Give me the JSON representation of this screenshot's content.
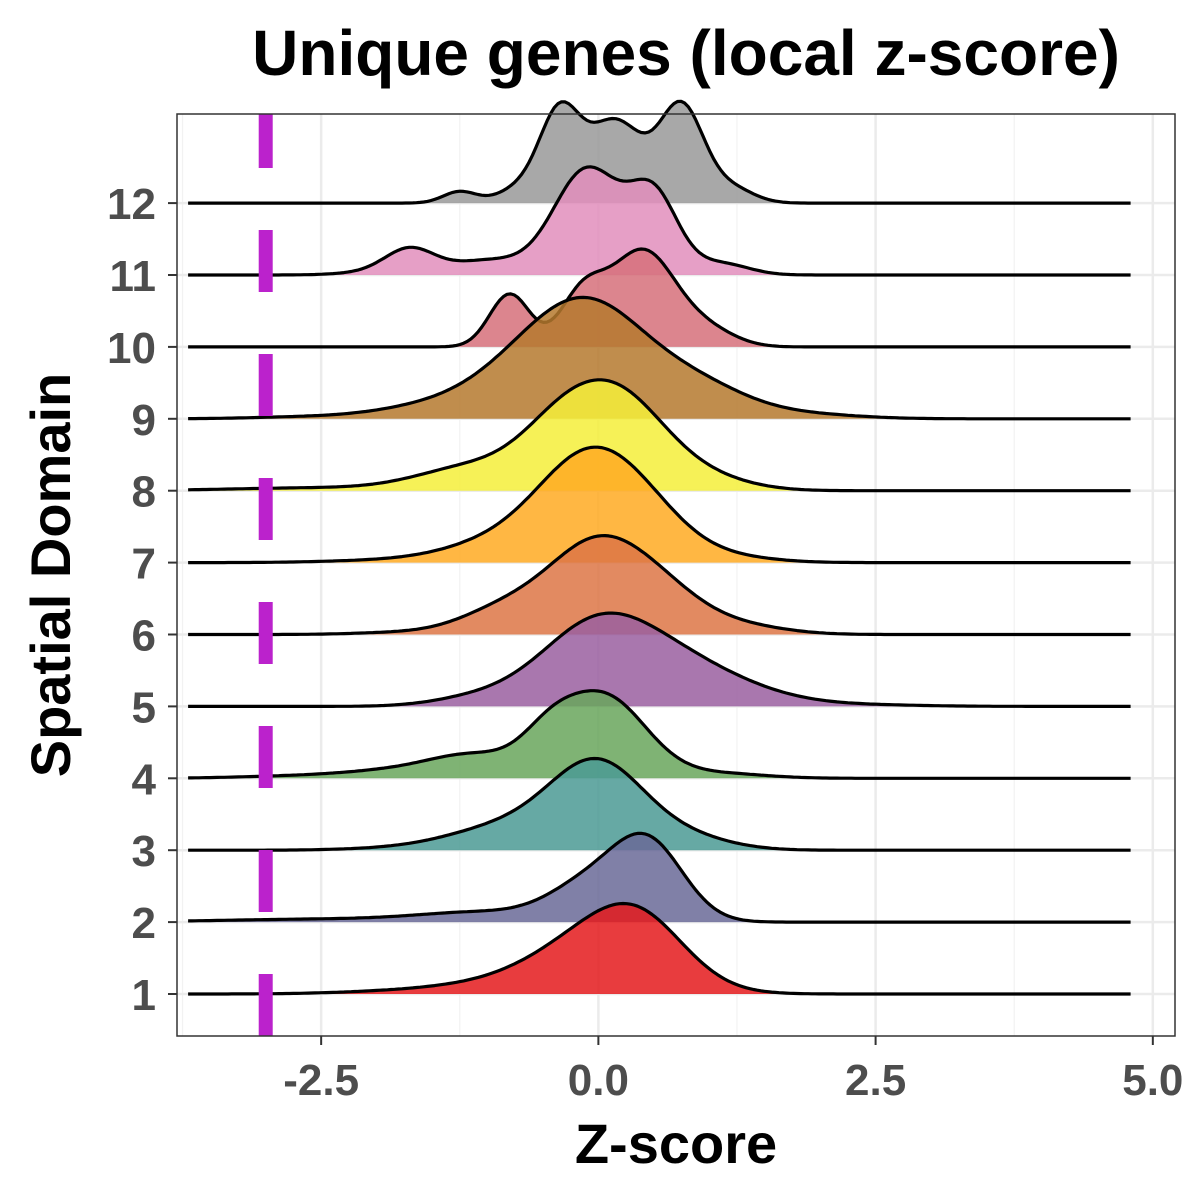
{
  "chart_data": {
    "type": "ridgeline",
    "title": "Unique genes (local z-score)",
    "xlabel": "Z-score",
    "ylabel": "Spatial Domain",
    "xlim": [
      -3.8,
      5.2
    ],
    "x_ticks": [
      -2.5,
      0.0,
      2.5,
      5.0
    ],
    "x_tick_labels": [
      "-2.5",
      "0.0",
      "2.5",
      "5.0"
    ],
    "x_support": [
      -3.7,
      4.8
    ],
    "threshold_x": -3.0,
    "threshold_color": "#bb22cc",
    "grid": true,
    "domains": [
      {
        "label": "1",
        "color": "#e41a1c",
        "peaks": [
          [
            0.05,
            0.55,
            0.55
          ],
          [
            0.4,
            0.4,
            0.4
          ],
          [
            -0.7,
            0.75,
            0.12
          ],
          [
            -2.0,
            0.5,
            0.01
          ]
        ]
      },
      {
        "label": "2",
        "color": "#6a6a98",
        "peaks": [
          [
            0.45,
            0.32,
            0.8
          ],
          [
            -0.1,
            0.35,
            0.35
          ],
          [
            -1.0,
            0.6,
            0.1
          ],
          [
            -2.5,
            0.9,
            0.03
          ]
        ]
      },
      {
        "label": "3",
        "color": "#4b9a94",
        "peaks": [
          [
            0.0,
            0.42,
            0.85
          ],
          [
            -0.8,
            0.55,
            0.25
          ],
          [
            0.8,
            0.4,
            0.12
          ],
          [
            -2.0,
            0.4,
            0.01
          ]
        ]
      },
      {
        "label": "4",
        "color": "#68a65c",
        "peaks": [
          [
            0.05,
            0.38,
            0.85
          ],
          [
            -0.45,
            0.25,
            0.3
          ],
          [
            -1.1,
            0.4,
            0.22
          ],
          [
            -1.8,
            0.5,
            0.08
          ],
          [
            1.1,
            0.4,
            0.05
          ],
          [
            -2.8,
            0.5,
            0.02
          ]
        ]
      },
      {
        "label": "5",
        "color": "#9a5fa0",
        "peaks": [
          [
            -0.05,
            0.5,
            0.78
          ],
          [
            0.6,
            0.5,
            0.35
          ],
          [
            1.2,
            0.5,
            0.15
          ],
          [
            -1.1,
            0.4,
            0.08
          ],
          [
            2.2,
            0.6,
            0.02
          ]
        ]
      },
      {
        "label": "6",
        "color": "#dd7645",
        "peaks": [
          [
            -0.05,
            0.42,
            0.85
          ],
          [
            0.55,
            0.4,
            0.4
          ],
          [
            -0.85,
            0.4,
            0.25
          ],
          [
            1.3,
            0.4,
            0.08
          ],
          [
            -1.8,
            0.4,
            0.02
          ]
        ]
      },
      {
        "label": "7",
        "color": "#ffaa22",
        "peaks": [
          [
            -0.1,
            0.45,
            1.0
          ],
          [
            0.45,
            0.4,
            0.35
          ],
          [
            -0.9,
            0.5,
            0.2
          ],
          [
            1.2,
            0.4,
            0.05
          ],
          [
            -2.0,
            0.5,
            0.02
          ]
        ]
      },
      {
        "label": "8",
        "color": "#f5ee3a",
        "peaks": [
          [
            0.15,
            0.45,
            1.0
          ],
          [
            -0.4,
            0.35,
            0.35
          ],
          [
            -1.1,
            0.5,
            0.25
          ],
          [
            1.0,
            0.4,
            0.1
          ],
          [
            -2.5,
            0.8,
            0.03
          ]
        ]
      },
      {
        "label": "9",
        "color": "#b5792e",
        "peaks": [
          [
            0.0,
            0.5,
            0.95
          ],
          [
            -0.6,
            0.5,
            0.5
          ],
          [
            0.9,
            0.45,
            0.3
          ],
          [
            -1.5,
            0.5,
            0.12
          ],
          [
            1.8,
            0.5,
            0.05
          ],
          [
            -2.6,
            0.5,
            0.02
          ]
        ]
      },
      {
        "label": "10",
        "color": "#d6707a",
        "peaks": [
          [
            0.4,
            0.3,
            1.0
          ],
          [
            -0.8,
            0.18,
            0.55
          ],
          [
            -0.15,
            0.2,
            0.5
          ],
          [
            1.0,
            0.25,
            0.15
          ]
        ]
      },
      {
        "label": "11",
        "color": "#e28ebc",
        "peaks": [
          [
            -0.1,
            0.3,
            1.1
          ],
          [
            0.5,
            0.22,
            0.8
          ],
          [
            -1.7,
            0.22,
            0.25
          ],
          [
            -1.0,
            0.35,
            0.15
          ],
          [
            1.1,
            0.25,
            0.12
          ],
          [
            -2.0,
            0.3,
            0.03
          ]
        ]
      },
      {
        "label": "12",
        "color": "#999999",
        "peaks": [
          [
            -0.35,
            0.18,
            0.9
          ],
          [
            0.75,
            0.2,
            1.0
          ],
          [
            0.15,
            0.25,
            0.85
          ],
          [
            1.2,
            0.2,
            0.15
          ],
          [
            -1.25,
            0.15,
            0.12
          ],
          [
            -0.7,
            0.2,
            0.15
          ]
        ]
      }
    ]
  }
}
